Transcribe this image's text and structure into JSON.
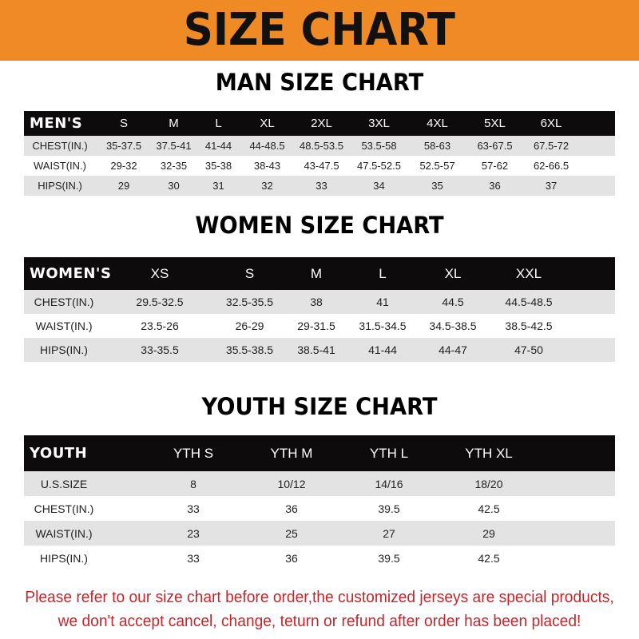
{
  "banner_title": "SIZE CHART",
  "men": {
    "title": "MAN SIZE CHART",
    "header": [
      "MEN'S",
      "S",
      "M",
      "L",
      "XL",
      "2XL",
      "3XL",
      "4XL",
      "5XL",
      "6XL"
    ],
    "rows": [
      [
        "CHEST(IN.)",
        "35-37.5",
        "37.5-41",
        "41-44",
        "44-48.5",
        "48.5-53.5",
        "53.5-58",
        "58-63",
        "63-67.5",
        "67.5-72"
      ],
      [
        "WAIST(IN.)",
        "29-32",
        "32-35",
        "35-38",
        "38-43",
        "43-47.5",
        "47.5-52.5",
        "52.5-57",
        "57-62",
        "62-66.5"
      ],
      [
        "HIPS(IN.)",
        "29",
        "30",
        "31",
        "32",
        "33",
        "34",
        "35",
        "36",
        "37"
      ]
    ]
  },
  "women": {
    "title": "WOMEN SIZE CHART",
    "header": [
      "WOMEN'S",
      "XS",
      "S",
      "M",
      "L",
      "XL",
      "XXL"
    ],
    "rows": [
      [
        "CHEST(IN.)",
        "29.5-32.5",
        "32.5-35.5",
        "38",
        "41",
        "44.5",
        "44.5-48.5"
      ],
      [
        "WAIST(IN.)",
        "23.5-26",
        "26-29",
        "29-31.5",
        "31.5-34.5",
        "34.5-38.5",
        "38.5-42.5"
      ],
      [
        "HIPS(IN.)",
        "33-35.5",
        "35.5-38.5",
        "38.5-41",
        "41-44",
        "44-47",
        "47-50"
      ]
    ]
  },
  "youth": {
    "title": "YOUTH SIZE CHART",
    "header": [
      "YOUTH",
      "YTH S",
      "YTH M",
      "YTH L",
      "YTH XL"
    ],
    "rows": [
      [
        "U.S.SIZE",
        "8",
        "10/12",
        "14/16",
        "18/20"
      ],
      [
        "CHEST(IN.)",
        "33",
        "36",
        "39.5",
        "42.5"
      ],
      [
        "WAIST(IN.)",
        "23",
        "25",
        "27",
        "29"
      ],
      [
        "HIPS(IN.)",
        "33",
        "36",
        "39.5",
        "42.5"
      ]
    ]
  },
  "note": {
    "line1": "Please refer to our size chart before order,the customized jerseys are special products,",
    "line2": "we don't accept cancel, change, teturn or refund after order has been placed!"
  },
  "colors": {
    "banner": "#f08a24",
    "header_row": "#0d0b0b",
    "stripe": "#e3e3e3",
    "note": "#c4262c"
  }
}
